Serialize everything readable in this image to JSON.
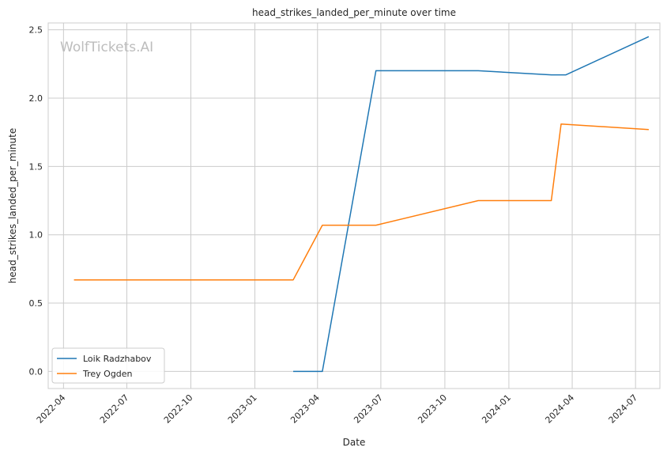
{
  "chart_data": {
    "type": "line",
    "title": "head_strikes_landed_per_minute over time",
    "xlabel": "Date",
    "ylabel": "head_strikes_landed_per_minute",
    "watermark": "WolfTickets.AI",
    "xlim": [
      "2022-03-10",
      "2024-08-05"
    ],
    "ylim": [
      -0.125,
      2.55
    ],
    "x_ticks": [
      "2022-04",
      "2022-07",
      "2022-10",
      "2023-01",
      "2023-04",
      "2023-07",
      "2023-10",
      "2024-01",
      "2024-04",
      "2024-07"
    ],
    "y_ticks": [
      "0.0",
      "0.5",
      "1.0",
      "1.5",
      "2.0",
      "2.5"
    ],
    "grid": true,
    "legend_position": "lower-left",
    "series": [
      {
        "name": "Loik Radzhabov",
        "color": "#1f77b4",
        "points": [
          {
            "x": "2023-02-25",
            "y": 0.0
          },
          {
            "x": "2023-04-08",
            "y": 0.0
          },
          {
            "x": "2023-06-24",
            "y": 2.2
          },
          {
            "x": "2023-11-18",
            "y": 2.2
          },
          {
            "x": "2024-03-02",
            "y": 2.17
          },
          {
            "x": "2024-03-23",
            "y": 2.17
          },
          {
            "x": "2024-07-20",
            "y": 2.45
          }
        ]
      },
      {
        "name": "Trey Ogden",
        "color": "#ff7f0e",
        "points": [
          {
            "x": "2022-04-16",
            "y": 0.67
          },
          {
            "x": "2023-02-25",
            "y": 0.67
          },
          {
            "x": "2023-04-08",
            "y": 1.07
          },
          {
            "x": "2023-06-24",
            "y": 1.07
          },
          {
            "x": "2023-11-18",
            "y": 1.25
          },
          {
            "x": "2024-03-02",
            "y": 1.25
          },
          {
            "x": "2024-03-16",
            "y": 1.81
          },
          {
            "x": "2024-07-20",
            "y": 1.77
          }
        ]
      }
    ]
  }
}
